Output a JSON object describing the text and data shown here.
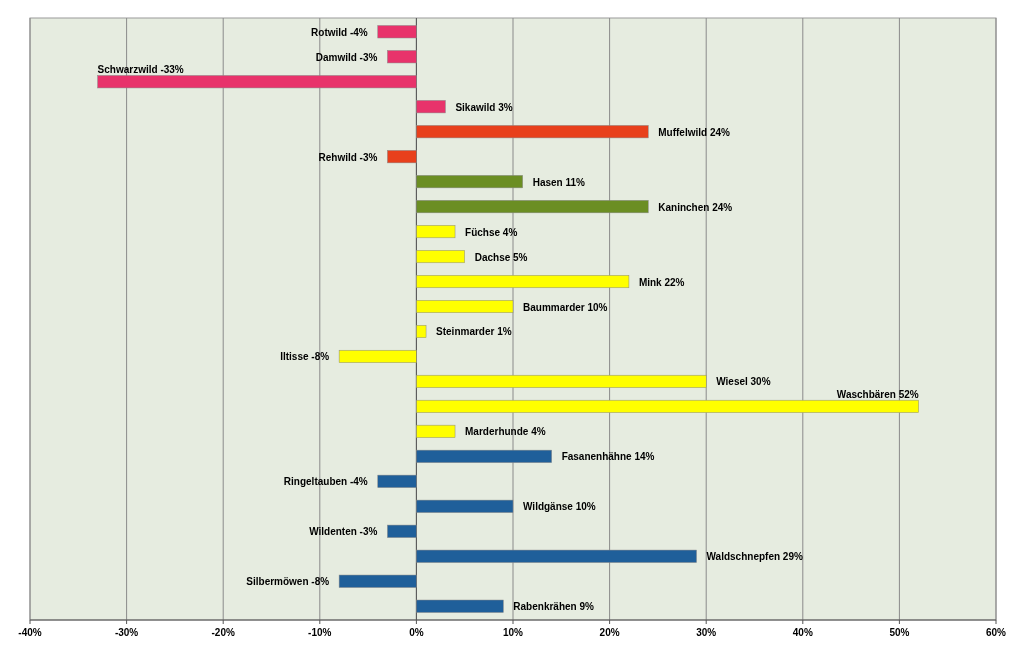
{
  "chart_data": {
    "type": "bar",
    "orientation": "horizontal",
    "categories": [
      null,
      null,
      null,
      null,
      null,
      null,
      null,
      null,
      null,
      null,
      null,
      null,
      null,
      null,
      null,
      null,
      null,
      null,
      null,
      null,
      null,
      null,
      null,
      null
    ],
    "values": [
      -4,
      -3,
      -33,
      3,
      24,
      -3,
      11,
      24,
      4,
      5,
      22,
      10,
      1,
      -8,
      30,
      52,
      4,
      14,
      -4,
      10,
      -3,
      29,
      -8,
      9
    ],
    "colors": [
      "#e8336b",
      "#e8336b",
      "#e8336b",
      "#e8336b",
      "#e8401c",
      "#e8401c",
      "#6b8e23",
      "#6b8e23",
      "#ffff00",
      "#ffff00",
      "#ffff00",
      "#ffff00",
      "#ffff00",
      "#ffff00",
      "#ffff00",
      "#ffff00",
      "#ffff00",
      "#1f5f9a",
      "#1f5f9a",
      "#1f5f9a",
      "#1f5f9a",
      "#1f5f9a",
      "#1f5f9a",
      "#1f5f9a"
    ],
    "value_labels": [
      "Rotwild -4%",
      "Damwild -3%",
      "Schwarzwild -33%",
      "Sikawild 3%",
      "Muffelwild 24%",
      "Rehwild -3%",
      "Hasen 11%",
      "Kaninchen  24%",
      "Füchse 4%",
      "Dachse 5%",
      "Mink 22%",
      "Baummarder 10%",
      "Steinmarder 1%",
      "Iltisse -8%",
      "Wiesel 30%",
      "Waschbären 52%",
      "Marderhunde 4%",
      "Fasanenhähne 14%",
      "Ringeltauben -4%",
      "Wildgänse  10%",
      "Wildenten -3%",
      "Waldschnepfen 29%",
      "Silbermöwen -8%",
      "Rabenkrähen 9%"
    ],
    "xlim": [
      -40,
      60
    ],
    "xticks": [
      {
        "value": -40,
        "label": "-40%"
      },
      {
        "value": -30,
        "label": "-30%"
      },
      {
        "value": -20,
        "label": "-20%"
      },
      {
        "value": -10,
        "label": "-10%"
      },
      {
        "value": 0,
        "label": "0%"
      },
      {
        "value": 10,
        "label": "10%"
      },
      {
        "value": 20,
        "label": "20%"
      },
      {
        "value": 30,
        "label": "30%"
      },
      {
        "value": 40,
        "label": "40%"
      },
      {
        "value": 50,
        "label": "50%"
      },
      {
        "value": 60,
        "label": "60%"
      }
    ],
    "grid": "x"
  }
}
